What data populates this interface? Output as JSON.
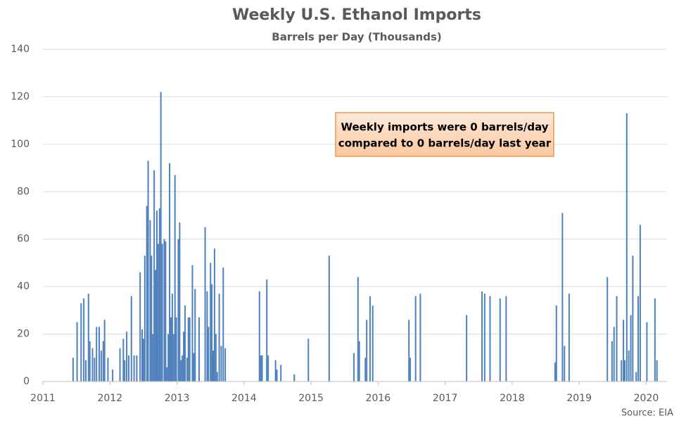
{
  "chart_data": {
    "type": "bar",
    "title": "Weekly U.S. Ethanol Imports",
    "subtitle": "Barrels per Day (Thousands)",
    "annotation": [
      "Weekly imports were 0 barrels/day",
      "compared to 0 barrels/day last year"
    ],
    "source": "Source: EIA",
    "series": [
      {
        "name": "Weekly U.S. Ethanol Imports",
        "color": "#4f81bd",
        "x": [
          2011.45,
          2011.51,
          2011.57,
          2011.61,
          2011.64,
          2011.68,
          2011.7,
          2011.74,
          2011.77,
          2011.8,
          2011.84,
          2011.87,
          2011.9,
          2011.92,
          2011.97,
          2012.04,
          2012.15,
          2012.2,
          2012.22,
          2012.25,
          2012.28,
          2012.32,
          2012.36,
          2012.4,
          2012.45,
          2012.48,
          2012.5,
          2012.52,
          2012.55,
          2012.57,
          2012.6,
          2012.62,
          2012.64,
          2012.66,
          2012.68,
          2012.7,
          2012.72,
          2012.74,
          2012.76,
          2012.78,
          2012.81,
          2012.83,
          2012.85,
          2012.87,
          2012.89,
          2012.91,
          2012.93,
          2012.95,
          2012.97,
          2012.99,
          2013.02,
          2013.04,
          2013.06,
          2013.08,
          2013.1,
          2013.12,
          2013.15,
          2013.17,
          2013.19,
          2013.23,
          2013.25,
          2013.27,
          2013.33,
          2013.42,
          2013.45,
          2013.47,
          2013.5,
          2013.52,
          2013.54,
          2013.56,
          2013.58,
          2013.6,
          2013.63,
          2013.66,
          2013.69,
          2013.72,
          2014.23,
          2014.25,
          2014.27,
          2014.34,
          2014.36,
          2014.47,
          2014.49,
          2014.55,
          2014.75,
          2014.96,
          2015.27,
          2015.64,
          2015.7,
          2015.72,
          2015.81,
          2015.83,
          2015.88,
          2015.92,
          2016.46,
          2016.48,
          2016.56,
          2016.63,
          2017.32,
          2017.55,
          2017.59,
          2017.67,
          2017.82,
          2017.91,
          2018.64,
          2018.66,
          2018.75,
          2018.78,
          2018.85,
          2019.42,
          2019.49,
          2019.52,
          2019.56,
          2019.63,
          2019.66,
          2019.68,
          2019.71,
          2019.74,
          2019.77,
          2019.8,
          2019.85,
          2019.88,
          2019.91,
          2020.01,
          2020.13,
          2020.16
        ],
        "values": [
          10,
          25,
          33,
          35,
          9,
          37,
          17,
          14,
          10,
          23,
          23,
          13,
          17,
          26,
          10,
          5,
          14,
          18,
          9,
          21,
          11,
          36,
          11,
          11,
          46,
          22,
          18,
          53,
          74,
          93,
          68,
          53,
          20,
          89,
          47,
          72,
          58,
          73,
          122,
          58,
          60,
          59,
          6,
          20,
          92,
          27,
          37,
          20,
          87,
          27,
          60,
          67,
          9,
          11,
          21,
          32,
          10,
          27,
          27,
          49,
          12,
          39,
          27,
          65,
          38,
          23,
          50,
          41,
          13,
          56,
          20,
          4,
          37,
          15,
          48,
          14,
          38,
          11,
          11,
          43,
          11,
          9,
          5,
          7,
          3,
          18,
          53,
          12,
          44,
          17,
          10,
          26,
          36,
          32,
          26,
          10,
          36,
          37,
          28,
          38,
          37,
          36,
          35,
          36,
          8,
          32,
          71,
          15,
          37,
          44,
          17,
          23,
          36,
          9,
          26,
          9,
          113,
          13,
          28,
          53,
          4,
          36,
          66,
          25,
          35,
          9
        ]
      }
    ],
    "xlim": [
      2011,
      2020.31
    ],
    "xticks": [
      2011,
      2012,
      2013,
      2014,
      2015,
      2016,
      2017,
      2018,
      2019,
      2020
    ],
    "ylim": [
      0,
      140
    ],
    "yticks": [
      0,
      20,
      40,
      60,
      80,
      100,
      120,
      140
    ],
    "grid": true
  }
}
